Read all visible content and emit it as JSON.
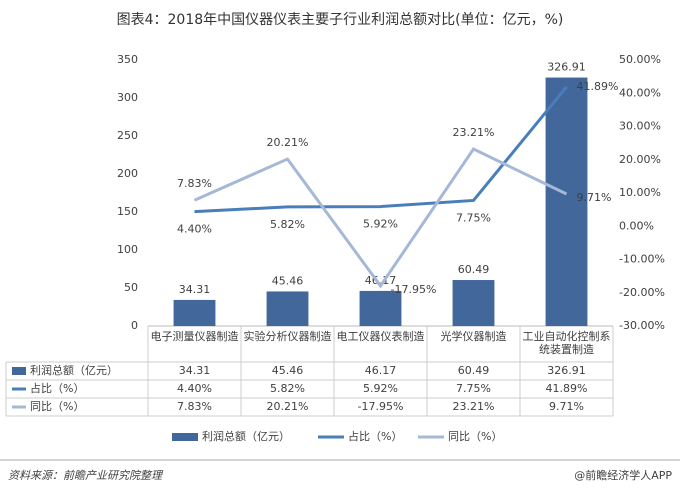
{
  "chart_data": {
    "type": "bar",
    "title": "图表4：2018年中国仪器仪表主要子行业利润总额对比(单位：亿元，%)",
    "source": "资料来源：前瞻产业研究院整理",
    "brand": "@前瞻经济学人APP",
    "categories": [
      "电子测量仪器制造",
      "实验分析仪器制造",
      "电工仪器仪表制造",
      "光学仪器制造",
      "工业自动化控制系统装置制造"
    ],
    "series": [
      {
        "name": "利润总额（亿元）",
        "type": "bar",
        "color": "#41679b",
        "values": [
          34.31,
          45.46,
          46.17,
          60.49,
          326.91
        ]
      },
      {
        "name": "占比（%）",
        "type": "line",
        "axis": "y2",
        "color": "#4a7ebb",
        "values": [
          4.4,
          5.82,
          5.92,
          7.75,
          41.89
        ],
        "value_labels": [
          "4.40%",
          "5.82%",
          "5.92%",
          "7.75%",
          "41.89%"
        ]
      },
      {
        "name": "同比（%）",
        "type": "line",
        "axis": "y2",
        "color": "#a5b8d6",
        "values": [
          7.83,
          20.21,
          -17.95,
          23.21,
          9.71
        ],
        "value_labels": [
          "7.83%",
          "20.21%",
          "-17.95%",
          "23.21%",
          "9.71%"
        ]
      }
    ],
    "ylim": [
      0,
      350
    ],
    "yticks": [
      0,
      50,
      100,
      150,
      200,
      250,
      300,
      350
    ],
    "y2lim": [
      -30,
      50
    ],
    "y2ticks": [
      {
        "value": -30,
        "label": "-30.00%"
      },
      {
        "value": -20,
        "label": "-20.00%"
      },
      {
        "value": -10,
        "label": "-10.00%"
      },
      {
        "value": 0,
        "label": "0.00%"
      },
      {
        "value": 10,
        "label": "10.00%"
      },
      {
        "value": 20,
        "label": "20.00%"
      },
      {
        "value": 30,
        "label": "30.00%"
      },
      {
        "value": 40,
        "label": "40.00%"
      },
      {
        "value": 50,
        "label": "50.00%"
      }
    ],
    "grid": false
  }
}
